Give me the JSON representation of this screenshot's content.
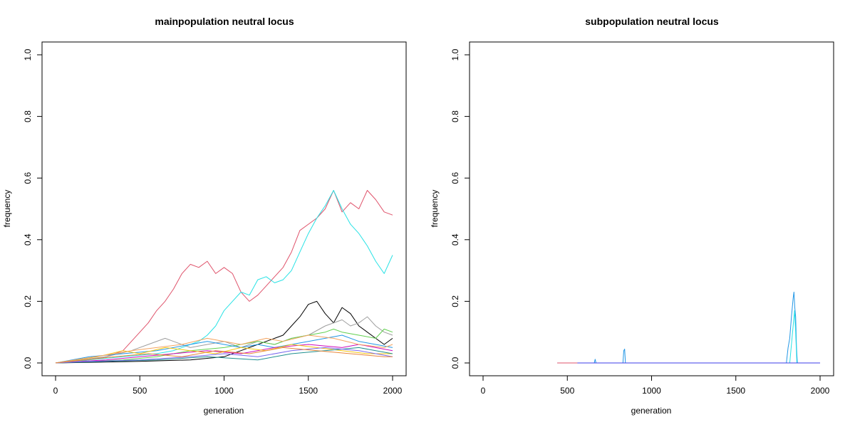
{
  "chart_data": [
    {
      "type": "line",
      "title": "mainpopulation neutral locus",
      "xlabel": "generation",
      "ylabel": "frequency",
      "xlim": [
        0,
        2000
      ],
      "ylim": [
        0,
        1
      ],
      "x_ticks": [
        "0",
        "500",
        "1000",
        "1500",
        "2000"
      ],
      "y_ticks": [
        "0.0",
        "0.2",
        "0.4",
        "0.6",
        "0.8",
        "1.0"
      ],
      "grid": false,
      "legend": "none",
      "series": [
        {
          "color": "#DF536B",
          "points": [
            [
              0,
              0
            ],
            [
              150,
              0.005
            ],
            [
              300,
              0.02
            ],
            [
              400,
              0.04
            ],
            [
              500,
              0.1
            ],
            [
              550,
              0.13
            ],
            [
              600,
              0.17
            ],
            [
              650,
              0.2
            ],
            [
              700,
              0.24
            ],
            [
              750,
              0.29
            ],
            [
              800,
              0.32
            ],
            [
              850,
              0.31
            ],
            [
              900,
              0.33
            ],
            [
              950,
              0.29
            ],
            [
              1000,
              0.31
            ],
            [
              1050,
              0.29
            ],
            [
              1100,
              0.23
            ],
            [
              1150,
              0.2
            ],
            [
              1200,
              0.22
            ],
            [
              1250,
              0.25
            ],
            [
              1300,
              0.28
            ],
            [
              1350,
              0.31
            ],
            [
              1400,
              0.36
            ],
            [
              1450,
              0.43
            ],
            [
              1500,
              0.45
            ],
            [
              1550,
              0.47
            ],
            [
              1600,
              0.5
            ],
            [
              1650,
              0.56
            ],
            [
              1700,
              0.49
            ],
            [
              1750,
              0.52
            ],
            [
              1800,
              0.5
            ],
            [
              1850,
              0.56
            ],
            [
              1900,
              0.53
            ],
            [
              1950,
              0.49
            ],
            [
              2000,
              0.48
            ]
          ]
        },
        {
          "color": "#28E2E5",
          "points": [
            [
              0,
              0
            ],
            [
              200,
              0.01
            ],
            [
              400,
              0.02
            ],
            [
              600,
              0.03
            ],
            [
              700,
              0.04
            ],
            [
              800,
              0.06
            ],
            [
              850,
              0.07
            ],
            [
              900,
              0.09
            ],
            [
              950,
              0.12
            ],
            [
              1000,
              0.17
            ],
            [
              1050,
              0.2
            ],
            [
              1100,
              0.23
            ],
            [
              1150,
              0.22
            ],
            [
              1200,
              0.27
            ],
            [
              1250,
              0.28
            ],
            [
              1300,
              0.26
            ],
            [
              1350,
              0.27
            ],
            [
              1400,
              0.3
            ],
            [
              1450,
              0.36
            ],
            [
              1500,
              0.42
            ],
            [
              1550,
              0.47
            ],
            [
              1600,
              0.51
            ],
            [
              1650,
              0.56
            ],
            [
              1700,
              0.5
            ],
            [
              1750,
              0.45
            ],
            [
              1800,
              0.42
            ],
            [
              1850,
              0.38
            ],
            [
              1900,
              0.33
            ],
            [
              1950,
              0.29
            ],
            [
              2000,
              0.35
            ]
          ]
        },
        {
          "color": "#000000",
          "points": [
            [
              0,
              0
            ],
            [
              500,
              0.005
            ],
            [
              800,
              0.01
            ],
            [
              1000,
              0.02
            ],
            [
              1100,
              0.04
            ],
            [
              1200,
              0.06
            ],
            [
              1300,
              0.08
            ],
            [
              1350,
              0.09
            ],
            [
              1400,
              0.12
            ],
            [
              1450,
              0.15
            ],
            [
              1500,
              0.19
            ],
            [
              1550,
              0.2
            ],
            [
              1600,
              0.16
            ],
            [
              1650,
              0.13
            ],
            [
              1700,
              0.18
            ],
            [
              1750,
              0.16
            ],
            [
              1800,
              0.12
            ],
            [
              1850,
              0.1
            ],
            [
              1900,
              0.08
            ],
            [
              1950,
              0.06
            ],
            [
              2000,
              0.08
            ]
          ]
        },
        {
          "color": "#9E9E9E",
          "points": [
            [
              0,
              0
            ],
            [
              300,
              0.02
            ],
            [
              450,
              0.04
            ],
            [
              550,
              0.06
            ],
            [
              650,
              0.08
            ],
            [
              700,
              0.07
            ],
            [
              800,
              0.05
            ],
            [
              900,
              0.06
            ],
            [
              1000,
              0.07
            ],
            [
              1100,
              0.05
            ],
            [
              1200,
              0.07
            ],
            [
              1300,
              0.06
            ],
            [
              1400,
              0.08
            ],
            [
              1500,
              0.09
            ],
            [
              1600,
              0.12
            ],
            [
              1700,
              0.14
            ],
            [
              1750,
              0.12
            ],
            [
              1800,
              0.13
            ],
            [
              1850,
              0.15
            ],
            [
              1900,
              0.12
            ],
            [
              1950,
              0.1
            ],
            [
              2000,
              0.09
            ]
          ]
        },
        {
          "color": "#61D04F",
          "points": [
            [
              0,
              0
            ],
            [
              400,
              0.01
            ],
            [
              600,
              0.02
            ],
            [
              800,
              0.04
            ],
            [
              1000,
              0.05
            ],
            [
              1100,
              0.06
            ],
            [
              1200,
              0.07
            ],
            [
              1300,
              0.06
            ],
            [
              1400,
              0.08
            ],
            [
              1500,
              0.09
            ],
            [
              1600,
              0.1
            ],
            [
              1650,
              0.11
            ],
            [
              1700,
              0.1
            ],
            [
              1800,
              0.09
            ],
            [
              1900,
              0.08
            ],
            [
              1950,
              0.11
            ],
            [
              2000,
              0.1
            ]
          ]
        },
        {
          "color": "#2297E6",
          "points": [
            [
              0,
              0
            ],
            [
              200,
              0.02
            ],
            [
              400,
              0.03
            ],
            [
              600,
              0.04
            ],
            [
              800,
              0.06
            ],
            [
              900,
              0.07
            ],
            [
              1000,
              0.06
            ],
            [
              1100,
              0.05
            ],
            [
              1200,
              0.06
            ],
            [
              1300,
              0.05
            ],
            [
              1400,
              0.06
            ],
            [
              1500,
              0.07
            ],
            [
              1600,
              0.08
            ],
            [
              1700,
              0.09
            ],
            [
              1800,
              0.07
            ],
            [
              1900,
              0.06
            ],
            [
              2000,
              0.05
            ]
          ]
        },
        {
          "color": "#CD0BBC",
          "points": [
            [
              0,
              0
            ],
            [
              300,
              0.01
            ],
            [
              500,
              0.02
            ],
            [
              700,
              0.03
            ],
            [
              900,
              0.04
            ],
            [
              1100,
              0.03
            ],
            [
              1300,
              0.05
            ],
            [
              1500,
              0.06
            ],
            [
              1700,
              0.05
            ],
            [
              1800,
              0.06
            ],
            [
              1900,
              0.05
            ],
            [
              2000,
              0.04
            ]
          ]
        },
        {
          "color": "#F5C710",
          "points": [
            [
              0,
              0
            ],
            [
              250,
              0.02
            ],
            [
              400,
              0.04
            ],
            [
              500,
              0.03
            ],
            [
              650,
              0.05
            ],
            [
              800,
              0.04
            ],
            [
              950,
              0.03
            ],
            [
              1100,
              0.05
            ],
            [
              1250,
              0.04
            ],
            [
              1400,
              0.06
            ],
            [
              1550,
              0.05
            ],
            [
              1700,
              0.04
            ],
            [
              1850,
              0.03
            ],
            [
              2000,
              0.03
            ]
          ]
        },
        {
          "color": "#F4A460",
          "points": [
            [
              0,
              0
            ],
            [
              350,
              0.03
            ],
            [
              450,
              0.04
            ],
            [
              600,
              0.05
            ],
            [
              750,
              0.06
            ],
            [
              900,
              0.08
            ],
            [
              1000,
              0.07
            ],
            [
              1100,
              0.06
            ],
            [
              1250,
              0.08
            ],
            [
              1350,
              0.07
            ],
            [
              1500,
              0.09
            ],
            [
              1650,
              0.08
            ],
            [
              1800,
              0.06
            ],
            [
              1950,
              0.05
            ],
            [
              2000,
              0.06
            ]
          ]
        },
        {
          "color": "#1F8F8F",
          "points": [
            [
              0,
              0
            ],
            [
              300,
              0.005
            ],
            [
              600,
              0.01
            ],
            [
              900,
              0.02
            ],
            [
              1200,
              0.01
            ],
            [
              1400,
              0.03
            ],
            [
              1600,
              0.04
            ],
            [
              1800,
              0.05
            ],
            [
              1900,
              0.04
            ],
            [
              2000,
              0.03
            ]
          ]
        },
        {
          "color": "#7B68EE",
          "points": [
            [
              0,
              0
            ],
            [
              200,
              0.005
            ],
            [
              500,
              0.01
            ],
            [
              800,
              0.02
            ],
            [
              1000,
              0.03
            ],
            [
              1200,
              0.02
            ],
            [
              1400,
              0.04
            ],
            [
              1600,
              0.05
            ],
            [
              1800,
              0.04
            ],
            [
              2000,
              0.02
            ]
          ]
        },
        {
          "color": "#E8853A",
          "points": [
            [
              0,
              0
            ],
            [
              350,
              0.02
            ],
            [
              550,
              0.03
            ],
            [
              750,
              0.02
            ],
            [
              950,
              0.04
            ],
            [
              1150,
              0.03
            ],
            [
              1350,
              0.05
            ],
            [
              1550,
              0.04
            ],
            [
              1750,
              0.03
            ],
            [
              1950,
              0.02
            ],
            [
              2000,
              0.02
            ]
          ]
        }
      ]
    },
    {
      "type": "line",
      "title": "subpopulation neutral locus",
      "xlabel": "generation",
      "ylabel": "frequency",
      "xlim": [
        0,
        2000
      ],
      "ylim": [
        0,
        1
      ],
      "x_ticks": [
        "0",
        "500",
        "1000",
        "1500",
        "2000"
      ],
      "y_ticks": [
        "0.0",
        "0.2",
        "0.4",
        "0.6",
        "0.8",
        "1.0"
      ],
      "grid": false,
      "legend": "none",
      "series": [
        {
          "color": "#2297E6",
          "points": [
            [
              440,
              0
            ],
            [
              660,
              0
            ],
            [
              665,
              0.012
            ],
            [
              670,
              0
            ],
            [
              830,
              0
            ],
            [
              835,
              0.04
            ],
            [
              840,
              0.045
            ],
            [
              845,
              0
            ],
            [
              1800,
              0
            ],
            [
              1810,
              0.05
            ],
            [
              1820,
              0.08
            ],
            [
              1830,
              0.15
            ],
            [
              1840,
              0.21
            ],
            [
              1845,
              0.23
            ],
            [
              1850,
              0.18
            ],
            [
              1855,
              0.15
            ],
            [
              1860,
              0.05
            ],
            [
              1865,
              0
            ],
            [
              2000,
              0
            ]
          ]
        },
        {
          "color": "#28E2E5",
          "points": [
            [
              1820,
              0
            ],
            [
              1830,
              0.06
            ],
            [
              1840,
              0.12
            ],
            [
              1848,
              0.17
            ],
            [
              1855,
              0.1
            ],
            [
              1862,
              0
            ]
          ]
        },
        {
          "color": "#DF536B",
          "points": [
            [
              440,
              0
            ],
            [
              520,
              0
            ],
            [
              560,
              0
            ]
          ]
        },
        {
          "color": "#3B3BE8",
          "points": [
            [
              560,
              0
            ],
            [
              1200,
              0
            ],
            [
              2000,
              0
            ]
          ]
        }
      ]
    }
  ]
}
